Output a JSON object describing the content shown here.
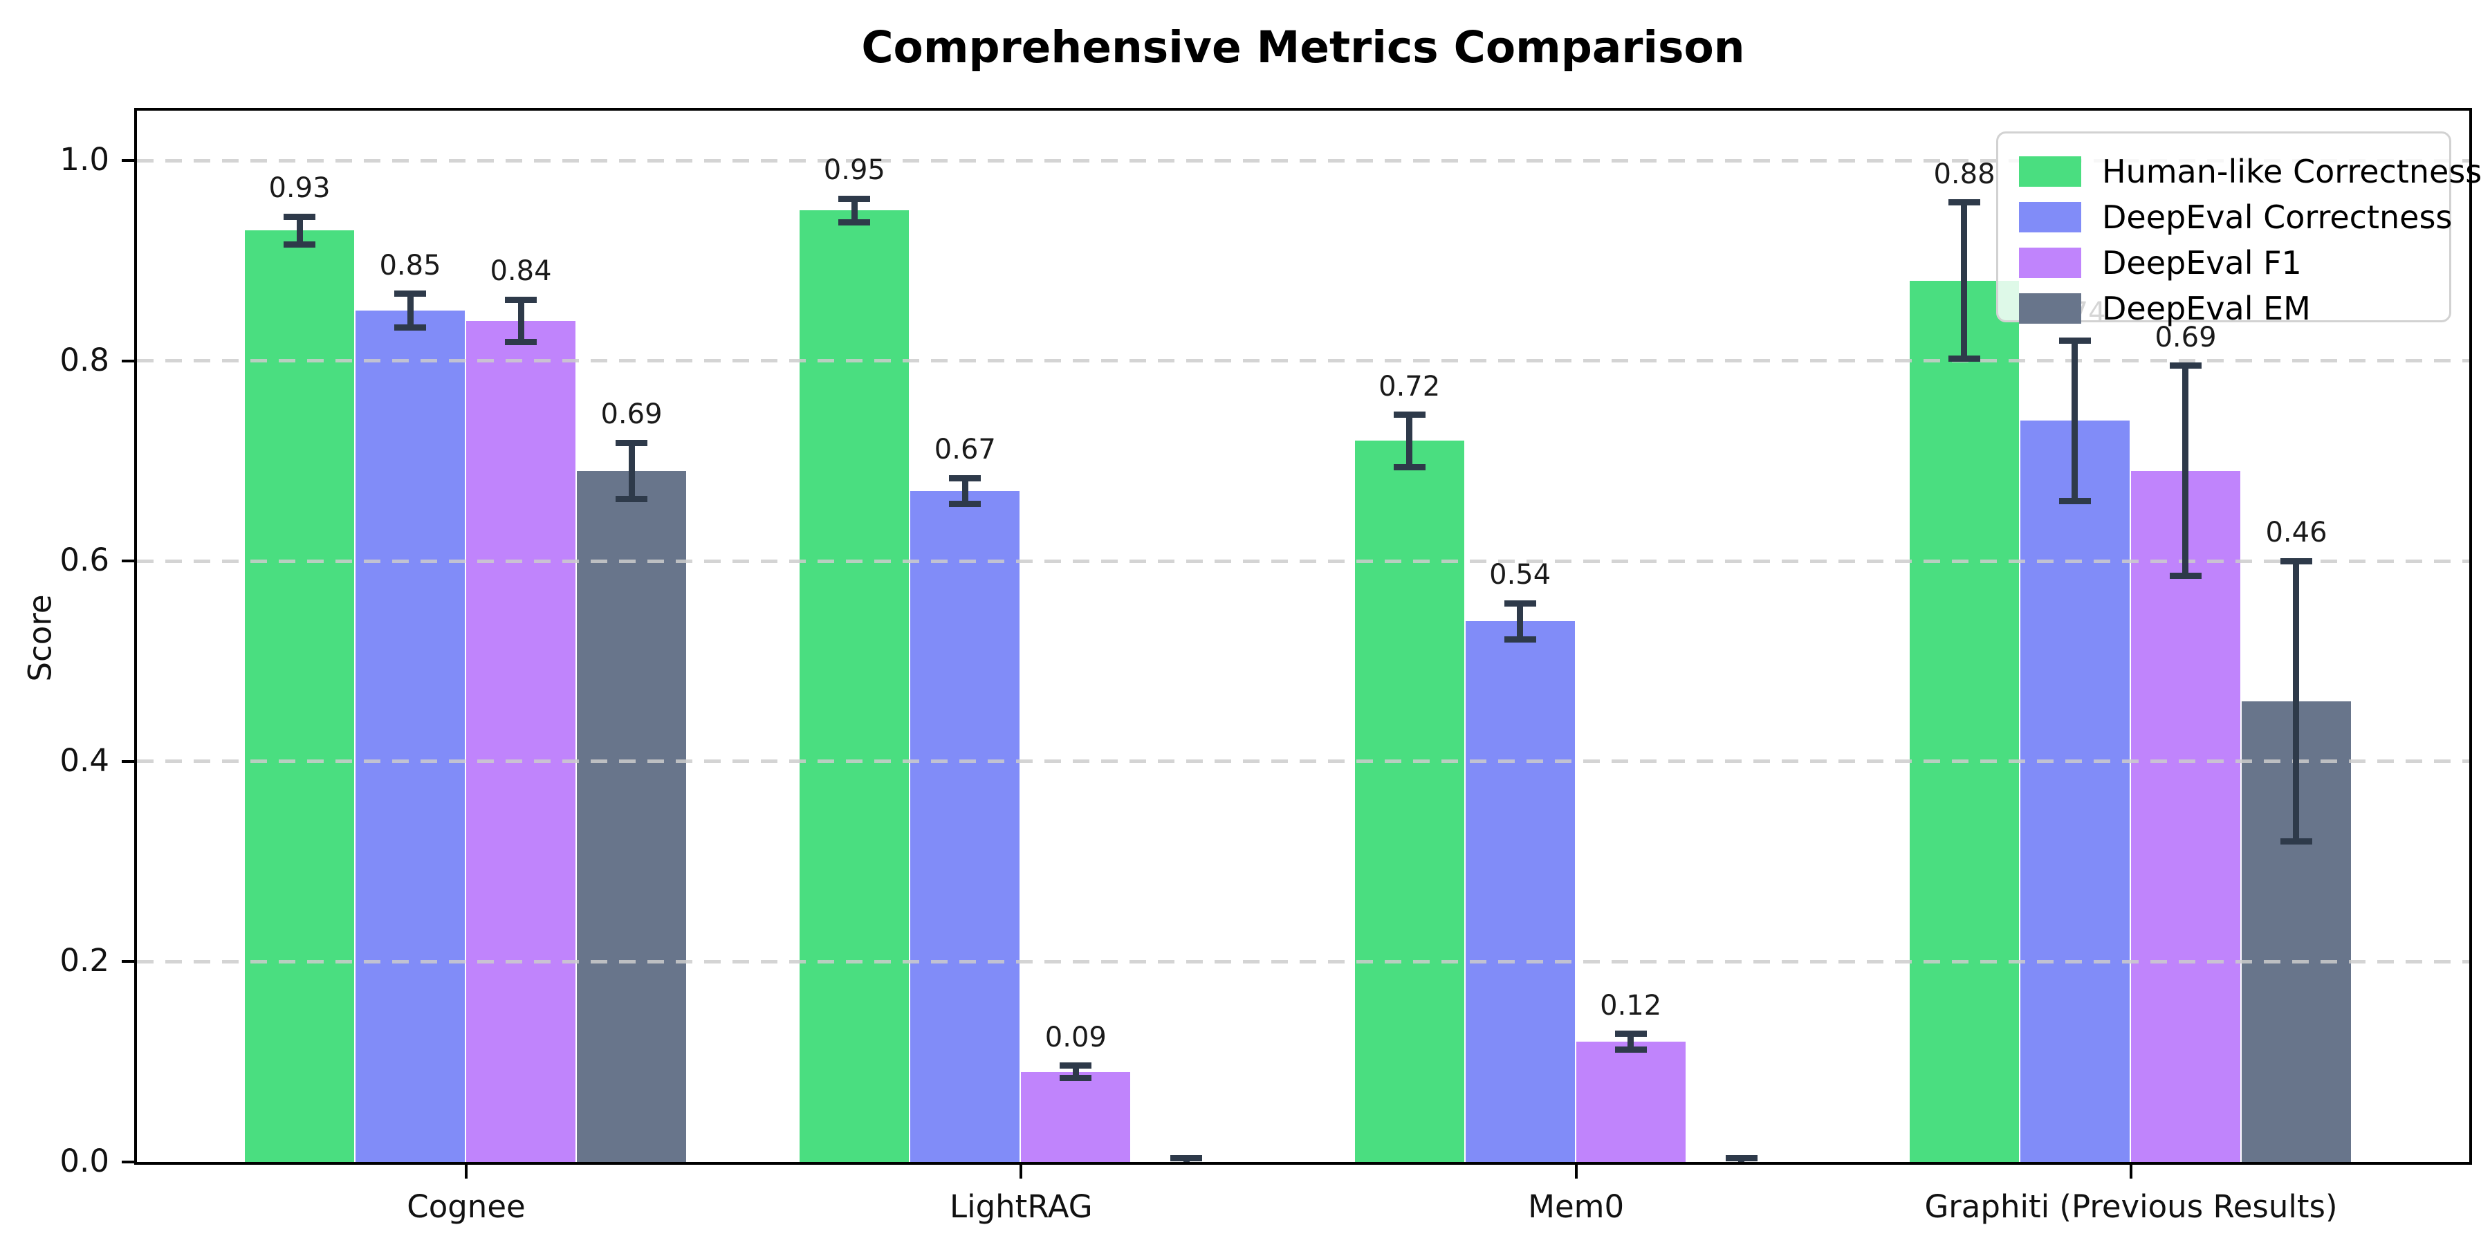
{
  "chart_data": {
    "type": "bar",
    "title": "Comprehensive Metrics Comparison",
    "ylabel": "Score",
    "xlabel": "",
    "ylim": [
      0,
      1.05
    ],
    "yticks": [
      0.0,
      0.2,
      0.4,
      0.6,
      0.8,
      1.0
    ],
    "ytick_labels": [
      "0.0",
      "0.2",
      "0.4",
      "0.6",
      "0.8",
      "1.0"
    ],
    "grid": "horizontal dashed lines at each y tick, light gray, drawn over bars",
    "legend_position": "upper right",
    "categories": [
      "Cognee",
      "LightRAG",
      "Mem0",
      "Graphiti (Previous Results)"
    ],
    "series": [
      {
        "name": "Human-like Correctness",
        "color": "#4ade80",
        "values": [
          0.93,
          0.95,
          0.72,
          0.88
        ],
        "errors": [
          0.014,
          0.012,
          0.026,
          0.078
        ],
        "labels": [
          "0.93",
          "0.95",
          "0.72",
          "0.88"
        ]
      },
      {
        "name": "DeepEval Correctness",
        "color": "#818cf8",
        "values": [
          0.85,
          0.67,
          0.54,
          0.74
        ],
        "errors": [
          0.017,
          0.013,
          0.018,
          0.08
        ],
        "labels": [
          "0.85",
          "0.67",
          "0.54",
          "0.74"
        ]
      },
      {
        "name": "DeepEval F1",
        "color": "#c084fc",
        "values": [
          0.84,
          0.09,
          0.12,
          0.69
        ],
        "errors": [
          0.021,
          0.006,
          0.008,
          0.105
        ],
        "labels": [
          "0.84",
          "0.09",
          "0.12",
          "0.69"
        ]
      },
      {
        "name": "DeepEval EM",
        "color": "#68758b",
        "values": [
          0.69,
          0.0,
          0.0,
          0.46
        ],
        "errors": [
          0.028,
          0.004,
          0.004,
          0.14
        ],
        "labels": [
          "0.69",
          null,
          null,
          "0.46"
        ]
      }
    ],
    "error_bar_color": "#2e3a4a"
  }
}
